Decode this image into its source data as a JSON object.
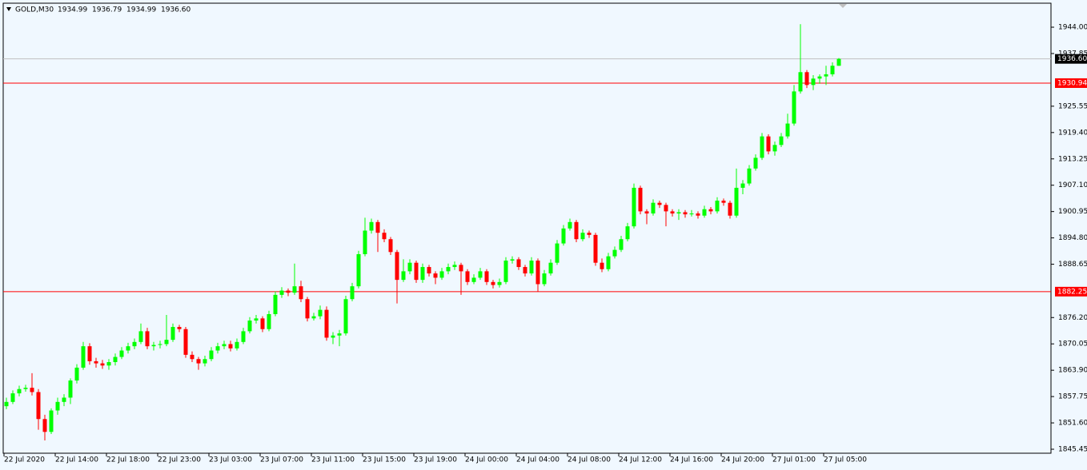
{
  "chart_data": {
    "type": "candlestick",
    "symbol": "GOLD,M30",
    "header_values": [
      "1934.99",
      "1936.79",
      "1934.99",
      "1936.60"
    ],
    "up_color": "#00ff00",
    "down_color": "#ff0000",
    "ylim": [
      1844.52,
      1950.35
    ],
    "yticks": [
      {
        "value": 1944.0,
        "label": "1944.00"
      },
      {
        "value": 1937.85,
        "label": "1937.85"
      },
      {
        "value": 1925.55,
        "label": "1925.55"
      },
      {
        "value": 1919.4,
        "label": "1919.40"
      },
      {
        "value": 1913.25,
        "label": "1913.25"
      },
      {
        "value": 1907.1,
        "label": "1907.10"
      },
      {
        "value": 1900.95,
        "label": "1900.95"
      },
      {
        "value": 1894.8,
        "label": "1894.80"
      },
      {
        "value": 1888.65,
        "label": "1888.65"
      },
      {
        "value": 1876.2,
        "label": "1876.20"
      },
      {
        "value": 1870.05,
        "label": "1870.05"
      },
      {
        "value": 1863.9,
        "label": "1863.90"
      },
      {
        "value": 1857.75,
        "label": "1857.75"
      },
      {
        "value": 1851.6,
        "label": "1851.60"
      },
      {
        "value": 1845.45,
        "label": "1845.45"
      }
    ],
    "xticks": [
      {
        "value": 0,
        "label": "22 Jul 2020"
      },
      {
        "value": 8,
        "label": "22 Jul 14:00"
      },
      {
        "value": 16,
        "label": "22 Jul 18:00"
      },
      {
        "value": 24,
        "label": "22 Jul 23:00"
      },
      {
        "value": 32,
        "label": "23 Jul 03:00"
      },
      {
        "value": 40,
        "label": "23 Jul 07:00"
      },
      {
        "value": 48,
        "label": "23 Jul 11:00"
      },
      {
        "value": 56,
        "label": "23 Jul 15:00"
      },
      {
        "value": 64,
        "label": "23 Jul 19:00"
      },
      {
        "value": 72,
        "label": "24 Jul 00:00"
      },
      {
        "value": 80,
        "label": "24 Jul 04:00"
      },
      {
        "value": 88,
        "label": "24 Jul 08:00"
      },
      {
        "value": 96,
        "label": "24 Jul 12:00"
      },
      {
        "value": 104,
        "label": "24 Jul 16:00"
      },
      {
        "value": 112,
        "label": "24 Jul 20:00"
      },
      {
        "value": 120,
        "label": "27 Jul 01:00"
      },
      {
        "value": 128,
        "label": "27 Jul 05:00"
      }
    ],
    "price_lines": [
      {
        "value": 1936.6,
        "label": "1936.60",
        "color": "#c0c0c0",
        "label_color": "#000000"
      },
      {
        "value": 1930.94,
        "label": "1930.94",
        "color": "#ff0000",
        "label_color": "#ff0000"
      },
      {
        "value": 1882.25,
        "label": "1882.25",
        "color": "#ff0000",
        "label_color": "#ff0000"
      }
    ],
    "ohlc": [
      [
        1855.5,
        1857.5,
        1854.8,
        1856.5
      ],
      [
        1856.5,
        1859.2,
        1856.0,
        1858.5
      ],
      [
        1858.5,
        1860.3,
        1857.8,
        1859.5
      ],
      [
        1859.5,
        1860.5,
        1858.9,
        1859.8
      ],
      [
        1859.8,
        1863.2,
        1858.0,
        1858.8
      ],
      [
        1858.8,
        1859.5,
        1850.0,
        1852.5
      ],
      [
        1852.5,
        1853.5,
        1847.5,
        1849.5
      ],
      [
        1849.5,
        1855.0,
        1849.0,
        1854.5
      ],
      [
        1854.5,
        1857.5,
        1853.5,
        1856.5
      ],
      [
        1856.5,
        1858.3,
        1855.5,
        1857.5
      ],
      [
        1857.5,
        1862.0,
        1856.0,
        1861.5
      ],
      [
        1861.5,
        1865.3,
        1860.8,
        1864.5
      ],
      [
        1864.5,
        1870.5,
        1864.0,
        1869.5
      ],
      [
        1869.5,
        1870.2,
        1865.2,
        1866.0
      ],
      [
        1866.0,
        1866.8,
        1864.5,
        1865.5
      ],
      [
        1865.5,
        1866.3,
        1864.2,
        1865.0
      ],
      [
        1865.0,
        1866.5,
        1864.0,
        1865.8
      ],
      [
        1865.8,
        1867.8,
        1865.0,
        1867.0
      ],
      [
        1867.0,
        1869.3,
        1866.5,
        1868.5
      ],
      [
        1868.5,
        1870.3,
        1867.8,
        1869.5
      ],
      [
        1869.5,
        1871.3,
        1868.8,
        1870.5
      ],
      [
        1870.5,
        1874.8,
        1870.0,
        1873.0
      ],
      [
        1873.0,
        1873.8,
        1868.8,
        1869.5
      ],
      [
        1869.5,
        1870.5,
        1868.5,
        1869.8
      ],
      [
        1869.8,
        1870.8,
        1869.0,
        1870.0
      ],
      [
        1870.0,
        1876.8,
        1869.5,
        1871.0
      ],
      [
        1871.0,
        1874.8,
        1870.5,
        1874.0
      ],
      [
        1874.0,
        1874.5,
        1872.8,
        1873.5
      ],
      [
        1873.5,
        1874.0,
        1866.8,
        1867.5
      ],
      [
        1867.5,
        1868.3,
        1865.8,
        1866.5
      ],
      [
        1866.5,
        1867.0,
        1864.0,
        1865.5
      ],
      [
        1865.5,
        1867.3,
        1864.8,
        1866.5
      ],
      [
        1866.5,
        1869.3,
        1866.0,
        1868.5
      ],
      [
        1868.5,
        1870.3,
        1867.8,
        1869.5
      ],
      [
        1869.5,
        1870.8,
        1868.8,
        1870.0
      ],
      [
        1870.0,
        1870.8,
        1868.3,
        1869.0
      ],
      [
        1869.0,
        1871.3,
        1868.5,
        1870.5
      ],
      [
        1870.5,
        1873.8,
        1870.0,
        1873.0
      ],
      [
        1873.0,
        1876.3,
        1872.5,
        1875.5
      ],
      [
        1875.5,
        1876.8,
        1874.8,
        1876.0
      ],
      [
        1876.0,
        1876.5,
        1872.8,
        1873.5
      ],
      [
        1873.5,
        1877.8,
        1873.0,
        1877.0
      ],
      [
        1877.0,
        1882.3,
        1876.5,
        1881.5
      ],
      [
        1881.5,
        1883.3,
        1880.8,
        1882.5
      ],
      [
        1882.5,
        1883.0,
        1881.2,
        1882.0
      ],
      [
        1882.0,
        1888.8,
        1881.5,
        1883.5
      ],
      [
        1883.5,
        1884.8,
        1879.8,
        1880.5
      ],
      [
        1880.5,
        1881.0,
        1875.3,
        1876.0
      ],
      [
        1876.0,
        1877.3,
        1875.5,
        1876.5
      ],
      [
        1876.5,
        1879.0,
        1875.8,
        1878.0
      ],
      [
        1878.0,
        1878.8,
        1870.8,
        1871.5
      ],
      [
        1871.5,
        1872.8,
        1870.0,
        1872.0
      ],
      [
        1872.0,
        1873.3,
        1869.5,
        1872.5
      ],
      [
        1872.5,
        1881.3,
        1872.0,
        1880.5
      ],
      [
        1880.5,
        1884.3,
        1880.0,
        1883.5
      ],
      [
        1883.5,
        1891.8,
        1883.0,
        1891.0
      ],
      [
        1891.0,
        1899.5,
        1890.5,
        1896.5
      ],
      [
        1896.5,
        1899.3,
        1895.8,
        1898.5
      ],
      [
        1898.5,
        1899.0,
        1891.5,
        1896.0
      ],
      [
        1896.0,
        1896.8,
        1893.8,
        1894.5
      ],
      [
        1894.5,
        1895.0,
        1890.8,
        1891.5
      ],
      [
        1891.5,
        1892.0,
        1879.5,
        1885.0
      ],
      [
        1885.0,
        1889.8,
        1884.5,
        1887.0
      ],
      [
        1887.0,
        1889.8,
        1886.3,
        1889.0
      ],
      [
        1889.0,
        1889.5,
        1884.3,
        1885.0
      ],
      [
        1885.0,
        1888.8,
        1884.3,
        1888.0
      ],
      [
        1888.0,
        1888.5,
        1885.8,
        1886.5
      ],
      [
        1886.5,
        1887.0,
        1884.0,
        1885.5
      ],
      [
        1885.5,
        1887.8,
        1885.0,
        1887.0
      ],
      [
        1887.0,
        1888.8,
        1886.3,
        1888.0
      ],
      [
        1888.0,
        1889.3,
        1887.3,
        1888.5
      ],
      [
        1888.5,
        1889.0,
        1881.5,
        1887.0
      ],
      [
        1887.0,
        1887.5,
        1883.8,
        1884.5
      ],
      [
        1884.5,
        1886.3,
        1884.0,
        1885.5
      ],
      [
        1885.5,
        1887.8,
        1885.0,
        1887.0
      ],
      [
        1887.0,
        1887.5,
        1883.8,
        1884.5
      ],
      [
        1884.5,
        1885.0,
        1883.0,
        1883.8
      ],
      [
        1883.8,
        1885.3,
        1883.2,
        1884.5
      ],
      [
        1884.5,
        1890.3,
        1884.0,
        1889.5
      ],
      [
        1889.5,
        1890.5,
        1888.8,
        1889.8
      ],
      [
        1889.8,
        1890.3,
        1887.3,
        1888.0
      ],
      [
        1888.0,
        1888.5,
        1885.8,
        1886.5
      ],
      [
        1886.5,
        1890.3,
        1886.0,
        1889.5
      ],
      [
        1889.5,
        1890.0,
        1882.3,
        1884.0
      ],
      [
        1884.0,
        1887.3,
        1883.5,
        1886.5
      ],
      [
        1886.5,
        1889.8,
        1886.0,
        1889.0
      ],
      [
        1889.0,
        1894.3,
        1888.5,
        1893.5
      ],
      [
        1893.5,
        1897.8,
        1893.0,
        1897.0
      ],
      [
        1897.0,
        1899.3,
        1896.5,
        1898.5
      ],
      [
        1898.5,
        1899.0,
        1893.8,
        1894.5
      ],
      [
        1894.5,
        1896.8,
        1894.0,
        1896.0
      ],
      [
        1896.0,
        1896.5,
        1894.8,
        1895.5
      ],
      [
        1895.5,
        1896.0,
        1888.3,
        1889.0
      ],
      [
        1889.0,
        1890.0,
        1886.8,
        1887.5
      ],
      [
        1887.5,
        1891.3,
        1887.0,
        1890.5
      ],
      [
        1890.5,
        1892.8,
        1890.0,
        1892.0
      ],
      [
        1892.0,
        1895.3,
        1891.5,
        1894.5
      ],
      [
        1894.5,
        1898.3,
        1894.0,
        1897.5
      ],
      [
        1897.5,
        1907.5,
        1897.0,
        1906.5
      ],
      [
        1906.5,
        1907.0,
        1900.3,
        1901.0
      ],
      [
        1901.0,
        1901.5,
        1898.0,
        1900.5
      ],
      [
        1900.5,
        1903.8,
        1900.0,
        1903.0
      ],
      [
        1903.0,
        1903.5,
        1901.8,
        1902.5
      ],
      [
        1902.5,
        1903.0,
        1897.5,
        1901.0
      ],
      [
        1901.0,
        1901.5,
        1899.8,
        1900.5
      ],
      [
        1900.5,
        1901.5,
        1899.0,
        1900.8
      ],
      [
        1900.8,
        1901.3,
        1899.5,
        1900.3
      ],
      [
        1900.3,
        1901.3,
        1899.8,
        1900.5
      ],
      [
        1900.5,
        1901.0,
        1899.3,
        1900.0
      ],
      [
        1900.0,
        1902.3,
        1899.5,
        1901.5
      ],
      [
        1901.5,
        1902.0,
        1900.3,
        1901.0
      ],
      [
        1901.0,
        1904.3,
        1900.5,
        1903.5
      ],
      [
        1903.5,
        1904.0,
        1902.3,
        1903.0
      ],
      [
        1903.0,
        1903.5,
        1899.3,
        1900.0
      ],
      [
        1900.0,
        1911.0,
        1899.5,
        1906.5
      ],
      [
        1906.5,
        1908.3,
        1905.0,
        1907.5
      ],
      [
        1907.5,
        1911.8,
        1907.0,
        1911.0
      ],
      [
        1911.0,
        1914.3,
        1910.5,
        1913.5
      ],
      [
        1913.5,
        1919.3,
        1913.0,
        1918.5
      ],
      [
        1918.5,
        1919.0,
        1914.3,
        1915.0
      ],
      [
        1915.0,
        1917.3,
        1914.0,
        1916.5
      ],
      [
        1916.5,
        1919.3,
        1916.0,
        1918.5
      ],
      [
        1918.5,
        1923.8,
        1918.0,
        1921.5
      ],
      [
        1921.5,
        1930.5,
        1921.0,
        1929.0
      ],
      [
        1929.0,
        1944.7,
        1928.5,
        1933.5
      ],
      [
        1933.5,
        1934.0,
        1929.8,
        1930.5
      ],
      [
        1930.5,
        1932.8,
        1929.3,
        1932.0
      ],
      [
        1932.0,
        1933.0,
        1930.8,
        1932.5
      ],
      [
        1932.5,
        1935.0,
        1930.5,
        1933.0
      ],
      [
        1933.0,
        1935.8,
        1932.5,
        1935.0
      ],
      [
        1934.99,
        1936.79,
        1934.99,
        1936.6
      ]
    ]
  }
}
